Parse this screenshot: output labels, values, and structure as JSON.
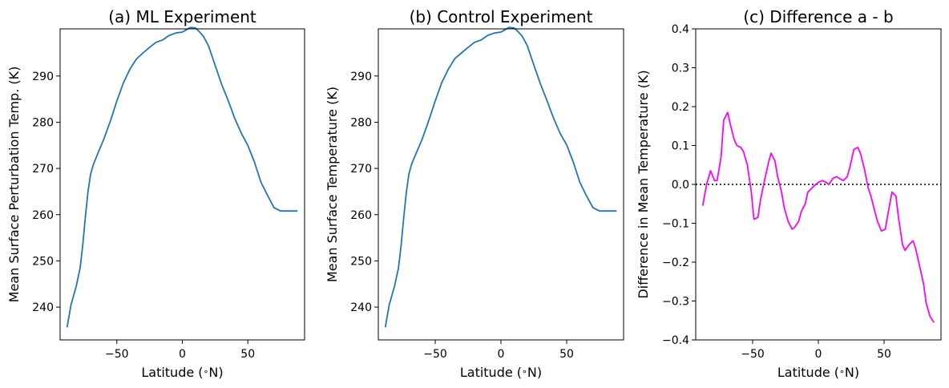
{
  "chart_data": [
    {
      "type": "line",
      "title": "(a) ML Experiment",
      "xlabel": "Latitude ($^\\circ$N)",
      "ylabel": "Mean Surface Perturbation Temp. (K)",
      "xlim": [
        -93.3,
        93.3
      ],
      "ylim": [
        232.9,
        300.2
      ],
      "xticks": [
        -50,
        0,
        50
      ],
      "xtick_labels": [
        "−50",
        "0",
        "50"
      ],
      "yticks": [
        240,
        250,
        260,
        270,
        280,
        290
      ],
      "ytick_labels": [
        "240",
        "250",
        "260",
        "270",
        "280",
        "290"
      ],
      "grid": false,
      "line_color": "#1f77b4",
      "x": [
        -88,
        -85,
        -81,
        -78,
        -76,
        -74,
        -72,
        -70,
        -68,
        -66,
        -64,
        -60,
        -55,
        -50,
        -45,
        -40,
        -35,
        -30,
        -25,
        -20,
        -15,
        -10,
        -5,
        0,
        3,
        6,
        10,
        13,
        16,
        20,
        25,
        30,
        35,
        40,
        45,
        50,
        55,
        60,
        65,
        70,
        75,
        80,
        83,
        86,
        88
      ],
      "y": [
        235.6,
        240.5,
        244.5,
        248.5,
        253.5,
        259.5,
        265.0,
        268.8,
        270.8,
        272.2,
        273.6,
        276.3,
        280.2,
        284.6,
        288.5,
        291.5,
        293.7,
        295.0,
        296.2,
        297.3,
        297.8,
        298.8,
        299.3,
        299.5,
        300.0,
        300.5,
        300.4,
        299.6,
        298.6,
        296.5,
        292.3,
        288.2,
        284.7,
        280.8,
        277.6,
        275.0,
        271.4,
        267.0,
        264.2,
        261.5,
        260.8,
        260.8,
        260.8,
        260.8,
        260.8
      ]
    },
    {
      "type": "line",
      "title": "(b) Control Experiment",
      "xlabel": "Latitude ($^\\circ$N)",
      "ylabel": "Mean Surface Temperature (K)",
      "xlim": [
        -93.3,
        93.3
      ],
      "ylim": [
        232.9,
        300.2
      ],
      "xticks": [
        -50,
        0,
        50
      ],
      "xtick_labels": [
        "−50",
        "0",
        "50"
      ],
      "yticks": [
        240,
        250,
        260,
        270,
        280,
        290
      ],
      "ytick_labels": [
        "240",
        "250",
        "260",
        "270",
        "280",
        "290"
      ],
      "grid": false,
      "line_color": "#1f77b4",
      "x": [
        -88,
        -85,
        -81,
        -78,
        -76,
        -74,
        -72,
        -70,
        -68,
        -66,
        -64,
        -60,
        -55,
        -50,
        -45,
        -40,
        -35,
        -30,
        -25,
        -20,
        -15,
        -10,
        -5,
        0,
        3,
        6,
        10,
        13,
        16,
        20,
        25,
        30,
        35,
        40,
        45,
        50,
        55,
        60,
        65,
        70,
        75,
        80,
        83,
        86,
        88
      ],
      "y": [
        235.6,
        240.5,
        244.5,
        248.4,
        253.3,
        259.2,
        264.8,
        268.8,
        270.9,
        272.3,
        273.6,
        276.3,
        280.3,
        284.6,
        288.6,
        291.5,
        293.8,
        295.0,
        296.2,
        297.3,
        297.8,
        298.8,
        299.3,
        299.5,
        300.0,
        300.5,
        300.4,
        299.6,
        298.7,
        296.6,
        292.4,
        288.3,
        284.7,
        280.9,
        277.6,
        275.1,
        271.4,
        267.0,
        264.1,
        261.5,
        260.8,
        260.8,
        260.8,
        260.8,
        260.8
      ]
    },
    {
      "type": "line",
      "title": "(c) Difference a - b",
      "xlabel": "Latitude ($^\\circ$N)",
      "ylabel": "Difference in Mean Temperature (K)",
      "xlim": [
        -93.3,
        93.3
      ],
      "ylim": [
        -0.4,
        0.4
      ],
      "xticks": [
        -50,
        0,
        50
      ],
      "xtick_labels": [
        "−50",
        "0",
        "50"
      ],
      "yticks": [
        -0.4,
        -0.3,
        -0.2,
        -0.1,
        0.0,
        0.1,
        0.2,
        0.3,
        0.4
      ],
      "ytick_labels": [
        "−0.4",
        "−0.3",
        "−0.2",
        "−0.1",
        "0.0",
        "0.1",
        "0.2",
        "0.3",
        "0.4"
      ],
      "grid": false,
      "line_color": "#ff00ff",
      "reference_line": {
        "y": 0.0,
        "style": "dotted",
        "color": "#000000"
      },
      "x": [
        -88,
        -85,
        -82,
        -79,
        -77,
        -74,
        -72,
        -69,
        -67,
        -64,
        -62,
        -59,
        -57,
        -54,
        -51,
        -49,
        -46,
        -44,
        -41,
        -38,
        -36,
        -33,
        -31,
        -28,
        -26,
        -23,
        -20,
        -18,
        -15,
        -13,
        -10,
        -8,
        -5,
        -2,
        0,
        3,
        6,
        8,
        11,
        14,
        16,
        19,
        22,
        24,
        27,
        30,
        32,
        35,
        38,
        40,
        43,
        45,
        48,
        51,
        53,
        56,
        59,
        61,
        64,
        66,
        69,
        72,
        74,
        77,
        80,
        82,
        85,
        88
      ],
      "y": [
        -0.055,
        0.0,
        0.035,
        0.01,
        0.01,
        0.07,
        0.165,
        0.185,
        0.155,
        0.115,
        0.1,
        0.095,
        0.085,
        0.05,
        -0.02,
        -0.09,
        -0.085,
        -0.04,
        0.01,
        0.055,
        0.08,
        0.06,
        0.02,
        -0.02,
        -0.06,
        -0.095,
        -0.115,
        -0.11,
        -0.095,
        -0.07,
        -0.05,
        -0.02,
        -0.01,
        0.0,
        0.005,
        0.01,
        0.005,
        0.0,
        0.015,
        0.02,
        0.015,
        0.01,
        0.02,
        0.045,
        0.09,
        0.095,
        0.08,
        0.04,
        -0.01,
        -0.03,
        -0.07,
        -0.095,
        -0.12,
        -0.115,
        -0.075,
        -0.02,
        -0.03,
        -0.085,
        -0.155,
        -0.17,
        -0.155,
        -0.145,
        -0.165,
        -0.21,
        -0.255,
        -0.305,
        -0.34,
        -0.355
      ]
    }
  ]
}
